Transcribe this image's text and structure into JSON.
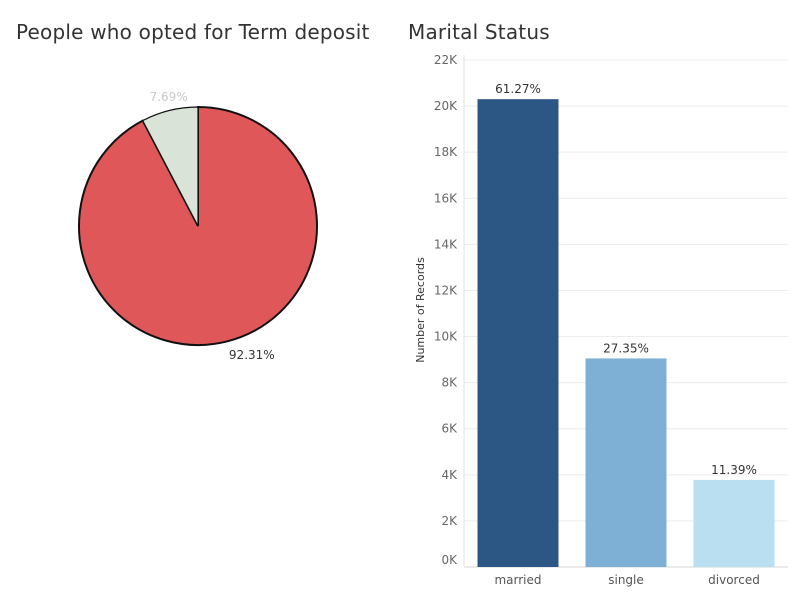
{
  "chart_data": [
    {
      "type": "pie",
      "title": "People who opted for Term deposit",
      "slices": [
        {
          "label": "92.31%",
          "value": 92.31,
          "color": "#e05759"
        },
        {
          "label": "7.69%",
          "value": 7.69,
          "color": "#d9e3d7"
        }
      ]
    },
    {
      "type": "bar",
      "title": "Marital Status",
      "ylabel": "Number of Records",
      "categories": [
        "married",
        "single",
        "divorced"
      ],
      "values": [
        20300,
        9050,
        3780
      ],
      "labels": [
        "61.27%",
        "27.35%",
        "11.39%"
      ],
      "colors": [
        "#2c5784",
        "#7eb0d5",
        "#b9dff0"
      ],
      "ylim": [
        0,
        22000
      ],
      "yticks": [
        0,
        2000,
        4000,
        6000,
        8000,
        10000,
        12000,
        14000,
        16000,
        18000,
        20000,
        22000
      ],
      "ytick_labels": [
        "0K",
        "2K",
        "4K",
        "6K",
        "8K",
        "10K",
        "12K",
        "14K",
        "16K",
        "18K",
        "20K",
        "22K"
      ],
      "grid": true
    }
  ]
}
